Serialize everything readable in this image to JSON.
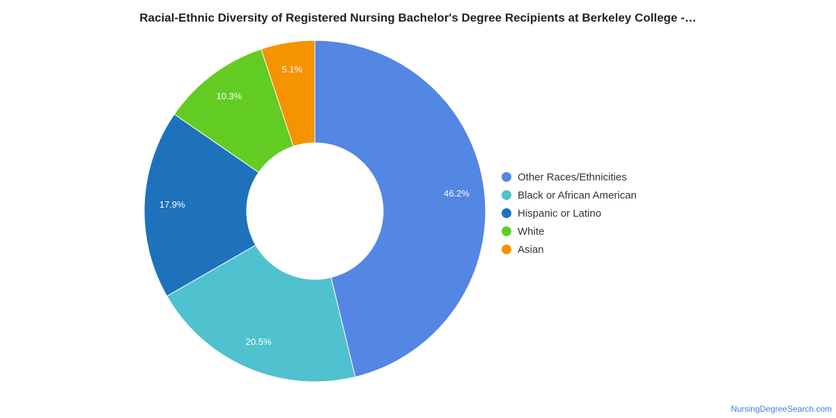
{
  "chart_data": {
    "type": "pie",
    "title": "Racial-Ethnic Diversity of Registered Nursing Bachelor's Degree Recipients at Berkeley College -…",
    "donut": true,
    "legend_position": "right",
    "categories": [
      "Other Races/Ethnicities",
      "Black or African American",
      "Hispanic or Latino",
      "White",
      "Asian"
    ],
    "values": [
      46.2,
      20.5,
      17.9,
      10.3,
      5.1
    ],
    "labels": [
      "46.2%",
      "20.5%",
      "17.9%",
      "10.3%",
      "5.1%"
    ],
    "colors": [
      "#5486e3",
      "#50c1ce",
      "#1e72bc",
      "#62cc23",
      "#f59300"
    ]
  },
  "credit": "NursingDegreeSearch.com"
}
